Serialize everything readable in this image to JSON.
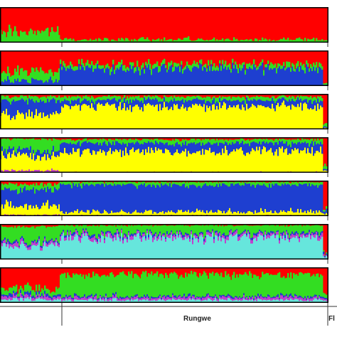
{
  "chart_data": {
    "type": "area",
    "subtype": "stacked-admixture-barplot",
    "title": "",
    "xlabel": "",
    "ylabel": "",
    "ylim": [
      0,
      1
    ],
    "grid": false,
    "legend": "none",
    "colors": {
      "red": "#ff0000",
      "green": "#33dd22",
      "blue": "#1e3fd0",
      "yellow": "#ffff00",
      "magenta": "#c040d0",
      "cyan": "#66e6dc"
    },
    "population_labels": [
      "Rungwe",
      "Fl"
    ],
    "panels": [
      {
        "K": 2,
        "segments": [
          {
            "from": 0.0,
            "to": 0.18,
            "proportions": {
              "green": 0.3,
              "red": 0.7
            }
          },
          {
            "from": 0.18,
            "to": 0.98,
            "proportions": {
              "green": 0.08,
              "red": 0.92
            }
          },
          {
            "from": 0.98,
            "to": 1.0,
            "proportions": {
              "green": 0.05,
              "red": 0.95
            }
          }
        ]
      },
      {
        "K": 3,
        "segments": [
          {
            "from": 0.0,
            "to": 0.18,
            "proportions": {
              "blue": 0.15,
              "green": 0.25,
              "red": 0.6
            }
          },
          {
            "from": 0.18,
            "to": 0.98,
            "proportions": {
              "blue": 0.5,
              "green": 0.12,
              "red": 0.38
            }
          },
          {
            "from": 0.98,
            "to": 1.0,
            "proportions": {
              "blue": 0.05,
              "green": 0.05,
              "red": 0.9
            }
          }
        ]
      },
      {
        "K": 4,
        "segments": [
          {
            "from": 0.0,
            "to": 0.18,
            "proportions": {
              "yellow": 0.42,
              "blue": 0.38,
              "green": 0.12,
              "red": 0.08
            }
          },
          {
            "from": 0.18,
            "to": 0.98,
            "proportions": {
              "yellow": 0.66,
              "blue": 0.16,
              "green": 0.1,
              "red": 0.08
            }
          },
          {
            "from": 0.98,
            "to": 1.0,
            "proportions": {
              "yellow": 0.05,
              "blue": 0.05,
              "green": 0.1,
              "red": 0.8
            }
          }
        ]
      },
      {
        "K": 5,
        "segments": [
          {
            "from": 0.0,
            "to": 0.18,
            "proportions": {
              "magenta": 0.06,
              "yellow": 0.42,
              "blue": 0.15,
              "green": 0.32,
              "red": 0.05
            }
          },
          {
            "from": 0.18,
            "to": 0.98,
            "proportions": {
              "magenta": 0.02,
              "yellow": 0.6,
              "blue": 0.22,
              "green": 0.1,
              "red": 0.06
            }
          },
          {
            "from": 0.98,
            "to": 1.0,
            "proportions": {
              "magenta": 0.02,
              "yellow": 0.05,
              "blue": 0.05,
              "green": 0.08,
              "red": 0.8
            }
          }
        ]
      },
      {
        "K": 6,
        "segments": [
          {
            "from": 0.0,
            "to": 0.18,
            "proportions": {
              "magenta": 0.04,
              "yellow": 0.26,
              "blue": 0.46,
              "green": 0.14,
              "red": 0.1
            }
          },
          {
            "from": 0.18,
            "to": 0.98,
            "proportions": {
              "magenta": 0.02,
              "yellow": 0.1,
              "blue": 0.76,
              "green": 0.08,
              "red": 0.04
            }
          },
          {
            "from": 0.98,
            "to": 1.0,
            "proportions": {
              "magenta": 0.02,
              "yellow": 0.05,
              "blue": 0.08,
              "green": 0.05,
              "red": 0.8
            }
          }
        ]
      },
      {
        "K": 7,
        "segments": [
          {
            "from": 0.0,
            "to": 0.18,
            "proportions": {
              "cyan": 0.38,
              "magenta": 0.08,
              "blue": 0.05,
              "green": 0.42,
              "red": 0.07
            }
          },
          {
            "from": 0.18,
            "to": 0.98,
            "proportions": {
              "cyan": 0.62,
              "magenta": 0.08,
              "blue": 0.05,
              "green": 0.21,
              "red": 0.04
            }
          },
          {
            "from": 0.98,
            "to": 1.0,
            "proportions": {
              "cyan": 0.1,
              "magenta": 0.03,
              "blue": 0.04,
              "green": 0.03,
              "red": 0.8
            }
          }
        ]
      },
      {
        "K": 8,
        "segments": [
          {
            "from": 0.0,
            "to": 0.18,
            "proportions": {
              "cyan": 0.1,
              "magenta": 0.08,
              "blue": 0.06,
              "green": 0.16,
              "red": 0.6
            }
          },
          {
            "from": 0.18,
            "to": 0.98,
            "proportions": {
              "cyan": 0.08,
              "magenta": 0.06,
              "blue": 0.04,
              "green": 0.62,
              "red": 0.2
            }
          },
          {
            "from": 0.98,
            "to": 1.0,
            "proportions": {
              "cyan": 0.05,
              "magenta": 0.03,
              "blue": 0.02,
              "green": 0.1,
              "red": 0.8
            }
          }
        ]
      }
    ]
  }
}
